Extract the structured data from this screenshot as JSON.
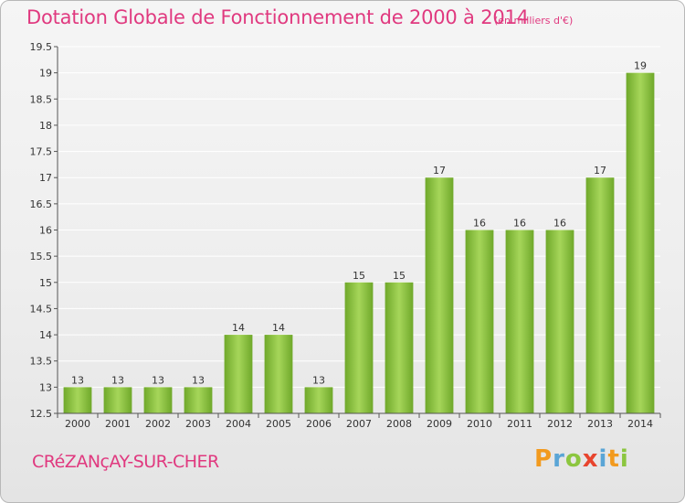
{
  "header": {
    "title": "Dotation Globale de Fonctionnement de 2000 à 2014",
    "subtitle": "(en milliers d'€)"
  },
  "footer": {
    "commune": "CRéZANçAY-SUR-CHER",
    "logo_letters": [
      "P",
      "r",
      "o",
      "x",
      "i",
      "t",
      "i"
    ],
    "logo_colors": [
      "#f29a1e",
      "#5aa5d6",
      "#8cc63f",
      "#e8452e",
      "#5aa5d6",
      "#f29a1e",
      "#8cc63f"
    ]
  },
  "chart_data": {
    "type": "bar",
    "title": "Dotation Globale de Fonctionnement de 2000 à 2014",
    "xlabel": "",
    "ylabel": "",
    "categories": [
      "2000",
      "2001",
      "2002",
      "2003",
      "2004",
      "2005",
      "2006",
      "2007",
      "2008",
      "2009",
      "2010",
      "2011",
      "2012",
      "2013",
      "2014"
    ],
    "values": [
      13,
      13,
      13,
      13,
      14,
      14,
      13,
      15,
      15,
      17,
      16,
      16,
      16,
      17,
      19
    ],
    "data_labels": [
      "13",
      "13",
      "13",
      "13",
      "14",
      "14",
      "13",
      "15",
      "15",
      "17",
      "16",
      "16",
      "16",
      "17",
      "19"
    ],
    "ylim": [
      12.5,
      19.5
    ],
    "yticks": [
      12.5,
      13,
      13.5,
      14,
      14.5,
      15,
      15.5,
      16,
      16.5,
      17,
      17.5,
      18,
      18.5,
      19,
      19.5
    ],
    "ytick_labels": [
      "12.5",
      "13",
      "13.5",
      "14",
      "14.5",
      "15",
      "15.5",
      "16",
      "16.5",
      "17",
      "17.5",
      "18",
      "18.5",
      "19",
      "19.5"
    ],
    "grid": true,
    "bar_color_light": "#a6d65a",
    "bar_color_dark": "#6fa82a",
    "axis_color": "#555555",
    "grid_color": "#ffffff"
  }
}
